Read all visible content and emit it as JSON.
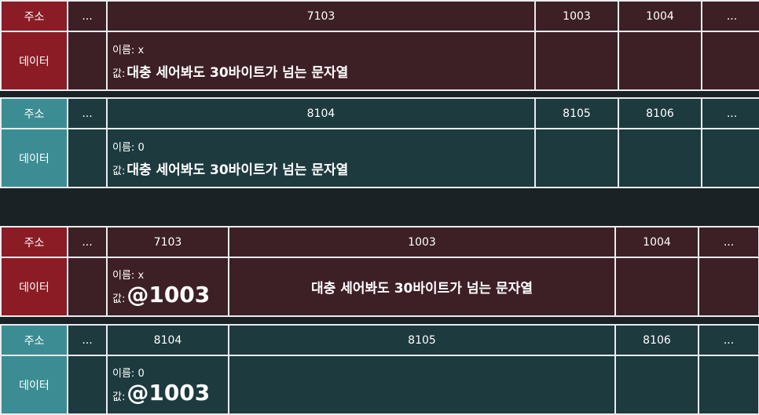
{
  "labels": {
    "address": "주소",
    "data": "데이터",
    "ellipsis": "...",
    "name_prefix": "이름:",
    "value_prefix": "값:"
  },
  "tables": [
    {
      "addresses": [
        "7103",
        "1003",
        "1004"
      ],
      "name": "x",
      "value": "대충 세어봐도 30바이트가 넘는 문자열"
    },
    {
      "addresses": [
        "8104",
        "8105",
        "8106"
      ],
      "name": "0",
      "value": "대충 세어봐도 30바이트가 넘는 문자열"
    },
    {
      "addresses": [
        "7103",
        "1003",
        "1004"
      ],
      "name": "x",
      "pointer": "@1003",
      "string": "대충 세어봐도 30바이트가 넘는 문자열"
    },
    {
      "addresses": [
        "8104",
        "8105",
        "8106"
      ],
      "name": "0",
      "pointer": "@1003"
    }
  ],
  "colors": {
    "red_label": "#8b1c25",
    "red_cell": "#3d2026",
    "teal_label": "#3c8d93",
    "teal_cell": "#1d3a3f",
    "background": "#1b2226"
  }
}
